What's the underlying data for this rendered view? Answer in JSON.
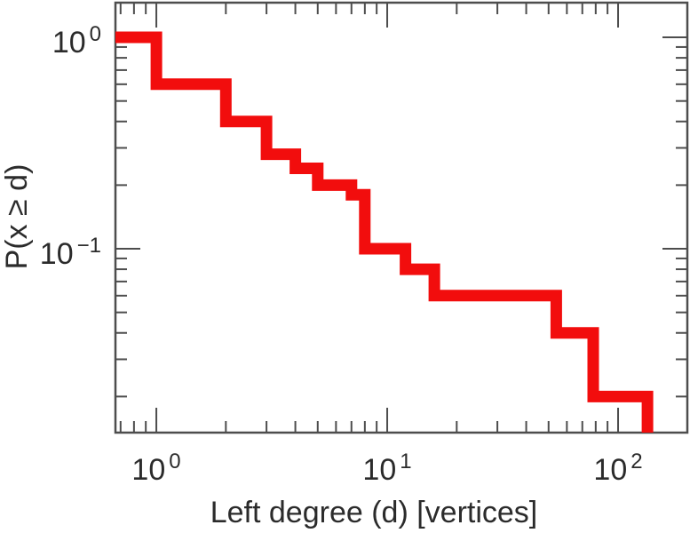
{
  "figure": {
    "background": "#ffffff",
    "line_color": "#f20d0d",
    "axis_color": "#4d4d4d",
    "text_color": "#2b2b2b"
  },
  "chart_data": {
    "type": "line",
    "subtype": "ccdf-step",
    "title": "",
    "xlabel": "Left degree (d) [vertices]",
    "ylabel": "P(x ≥ d)",
    "x_scale": "log",
    "y_scale": "log",
    "grid": false,
    "legend": null,
    "xlim": [
      0.665,
      199.5
    ],
    "ylim": [
      0.0135,
      1.459
    ],
    "series": [
      {
        "name": "left-degree-ccdf",
        "description": "Complementary cumulative distribution P(x ≥ d); value holds from each step's x until the next step's x",
        "start_p": 1.0,
        "steps": [
          [
            1,
            0.6
          ],
          [
            2,
            0.4
          ],
          [
            3,
            0.28
          ],
          [
            4,
            0.24
          ],
          [
            5,
            0.2
          ],
          [
            7,
            0.18
          ],
          [
            8,
            0.1
          ],
          [
            12,
            0.08
          ],
          [
            16,
            0.06
          ],
          [
            54,
            0.04
          ],
          [
            78,
            0.02
          ],
          [
            134,
            0.0135
          ]
        ]
      }
    ],
    "x_ticks": {
      "major": [
        {
          "value": 1,
          "base": "10",
          "exp": "0"
        },
        {
          "value": 10,
          "base": "10",
          "exp": "1"
        },
        {
          "value": 100,
          "base": "10",
          "exp": "2"
        }
      ],
      "minor": [
        0.7,
        0.8,
        0.9,
        2,
        3,
        4,
        5,
        6,
        7,
        8,
        9,
        20,
        30,
        40,
        50,
        60,
        70,
        80,
        90
      ]
    },
    "y_ticks": {
      "major": [
        {
          "value": 1,
          "base": "10",
          "exp": "0"
        },
        {
          "value": 0.1,
          "base": "10",
          "exp": "−1"
        }
      ],
      "minor": [
        0.9,
        0.8,
        0.7,
        0.6,
        0.5,
        0.4,
        0.3,
        0.2,
        0.09,
        0.08,
        0.07,
        0.06,
        0.05,
        0.04,
        0.03,
        0.02
      ]
    }
  }
}
